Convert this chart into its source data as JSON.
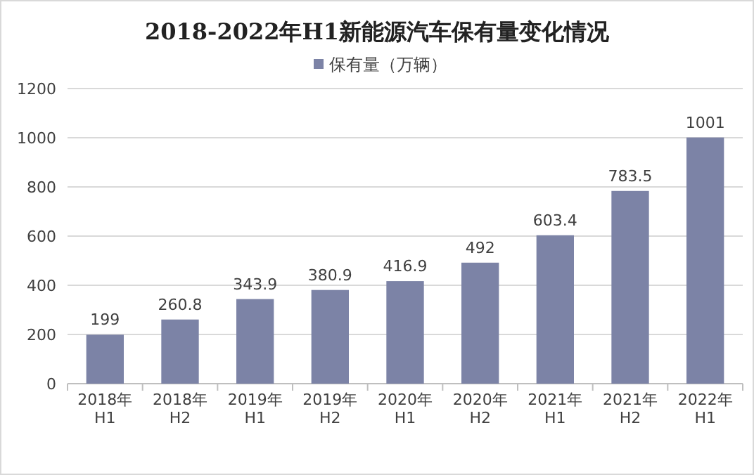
{
  "chart_data": {
    "type": "bar",
    "title": "2018-2022年H1新能源汽车保有量变化情况",
    "categories": [
      "2018年\nH1",
      "2018年\nH2",
      "2019年\nH1",
      "2019年\nH2",
      "2020年\nH1",
      "2020年\nH2",
      "2021年\nH1",
      "2021年\nH2",
      "2022年\nH1"
    ],
    "series": [
      {
        "name": "保有量（万辆）",
        "color": "#7c83a6",
        "values": [
          199,
          260.8,
          343.9,
          380.9,
          416.9,
          492,
          603.4,
          783.5,
          1001
        ]
      }
    ],
    "ylim": [
      0,
      1200
    ],
    "yticks": [
      0,
      200,
      400,
      600,
      800,
      1000,
      1200
    ],
    "grid": "y",
    "legend": "top",
    "data_labels": true
  }
}
